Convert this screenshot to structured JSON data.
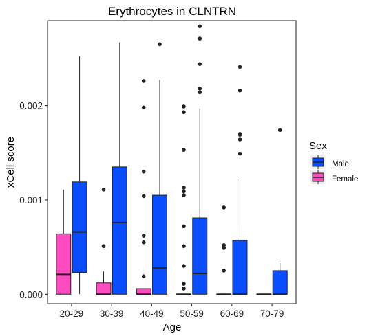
{
  "chart_data": {
    "type": "boxplot",
    "title": "Erythrocytes in CLNTRN",
    "xlabel": "Age",
    "ylabel": "xCell score",
    "ylim": [
      -0.0001,
      0.0029
    ],
    "yticks": [
      0.0,
      0.001,
      0.002
    ],
    "ytick_labels": [
      "0.000",
      "0.001",
      "0.002"
    ],
    "categories": [
      "20-29",
      "30-39",
      "40-49",
      "50-59",
      "60-69",
      "70-79"
    ],
    "grid": false,
    "legend": {
      "title": "Sex",
      "position": "right",
      "entries": [
        "Male",
        "Female"
      ]
    },
    "series": [
      {
        "name": "Female",
        "color": "#FF4BC0",
        "boxes": [
          {
            "category": "20-29",
            "whisker_low": 0.0,
            "q1": 0.0,
            "median": 0.00021,
            "q3": 0.00064,
            "whisker_high": 0.00111,
            "outliers": []
          },
          {
            "category": "30-39",
            "whisker_low": 0.0,
            "q1": 0.0,
            "median": 0.0,
            "q3": 0.00012,
            "whisker_high": 0.00024,
            "outliers": [
              0.00051,
              0.00111
            ]
          },
          {
            "category": "40-49",
            "whisker_low": 0.0,
            "q1": 0.0,
            "median": 0.0,
            "q3": 6e-05,
            "whisker_high": 6e-05,
            "outliers": [
              0.00019,
              0.00055,
              0.00062,
              0.00104,
              0.0013,
              0.00198,
              0.00226
            ]
          },
          {
            "category": "50-59",
            "whisker_low": 0.0,
            "q1": 0.0,
            "median": 0.0,
            "q3": 0.0,
            "whisker_high": 0.0,
            "outliers": [
              6e-05,
              0.00011,
              0.0003,
              0.00051,
              0.00072,
              0.00105,
              0.00109,
              0.00113,
              0.00153,
              0.00193,
              0.00199
            ]
          },
          {
            "category": "60-69",
            "whisker_low": 0.0,
            "q1": 0.0,
            "median": 0.0,
            "q3": 0.0,
            "whisker_high": 0.0,
            "outliers": [
              0.00025,
              0.00049,
              0.00052,
              0.00092
            ]
          },
          {
            "category": "70-79",
            "whisker_low": 0.0,
            "q1": 0.0,
            "median": 0.0,
            "q3": 0.0,
            "whisker_high": 0.0,
            "outliers": []
          }
        ]
      },
      {
        "name": "Male",
        "color": "#0A4DFF",
        "boxes": [
          {
            "category": "20-29",
            "whisker_low": 0.0,
            "q1": 0.00023,
            "median": 0.00066,
            "q3": 0.00119,
            "whisker_high": 0.00252,
            "outliers": []
          },
          {
            "category": "30-39",
            "whisker_low": 0.0,
            "q1": 0.0,
            "median": 0.00076,
            "q3": 0.00135,
            "whisker_high": 0.00267,
            "outliers": []
          },
          {
            "category": "40-49",
            "whisker_low": 0.0,
            "q1": 0.0,
            "median": 0.00028,
            "q3": 0.00105,
            "whisker_high": 0.00227,
            "outliers": [
              0.00265
            ]
          },
          {
            "category": "50-59",
            "whisker_low": 0.0,
            "q1": 0.0,
            "median": 0.00022,
            "q3": 0.00081,
            "whisker_high": 0.00197,
            "outliers": [
              0.00214,
              0.00218,
              0.00244,
              0.00271,
              0.00284
            ]
          },
          {
            "category": "60-69",
            "whisker_low": 0.0,
            "q1": 0.0,
            "median": 0.0,
            "q3": 0.00057,
            "whisker_high": 0.00122,
            "outliers": [
              0.00149,
              0.00164,
              0.00169,
              0.0017,
              0.00216,
              0.00241
            ]
          },
          {
            "category": "70-79",
            "whisker_low": 0.0,
            "q1": 0.0,
            "median": 0.0,
            "q3": 0.00025,
            "whisker_high": 0.00033,
            "outliers": [
              0.00174
            ]
          }
        ]
      }
    ]
  }
}
